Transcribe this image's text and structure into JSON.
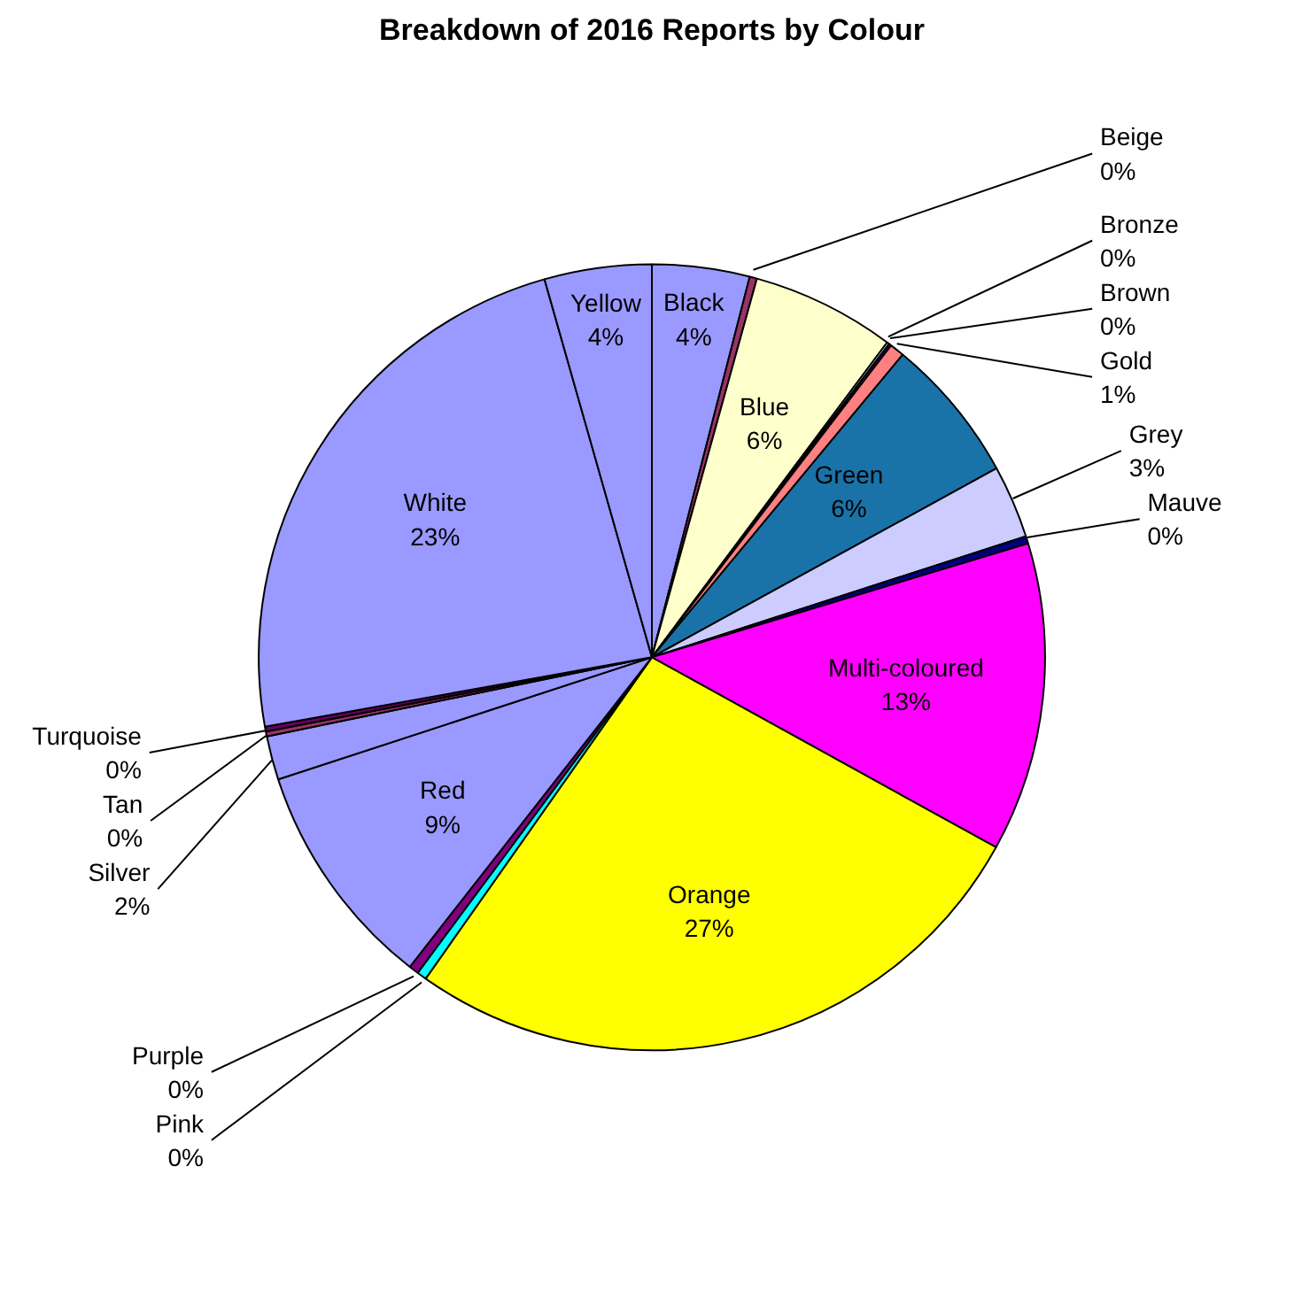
{
  "chart_data": {
    "type": "pie",
    "title": "Breakdown of 2016 Reports by Colour",
    "categories": [
      "Black",
      "Beige",
      "Blue",
      "Bronze",
      "Brown",
      "Gold",
      "Green",
      "Grey",
      "Mauve",
      "Multi-coloured",
      "Orange",
      "Pink",
      "Purple",
      "Red",
      "Silver",
      "Tan",
      "Turquoise",
      "White",
      "Yellow"
    ],
    "values": [
      4.0,
      0.3,
      5.9,
      0.1,
      0.1,
      0.6,
      6.0,
      3.0,
      0.3,
      12.7,
      26.7,
      0.4,
      0.4,
      9.4,
      1.8,
      0.2,
      0.2,
      23.4,
      4.4
    ],
    "value_labels": [
      "4%",
      "0%",
      "6%",
      "0%",
      "0%",
      "1%",
      "6%",
      "3%",
      "0%",
      "13%",
      "27%",
      "0%",
      "0%",
      "9%",
      "2%",
      "0%",
      "0%",
      "23%",
      "4%"
    ],
    "colors": [
      "#9999ff",
      "#993366",
      "#ffffcc",
      "#ccffff",
      "#660066",
      "#ff8080",
      "#1a73a8",
      "#ccccff",
      "#000080",
      "#ff00ff",
      "#ffff00",
      "#00ffff",
      "#800080",
      "#9999ff",
      "#9999ff",
      "#993366",
      "#660066",
      "#9999ff",
      "#9999ff"
    ]
  }
}
